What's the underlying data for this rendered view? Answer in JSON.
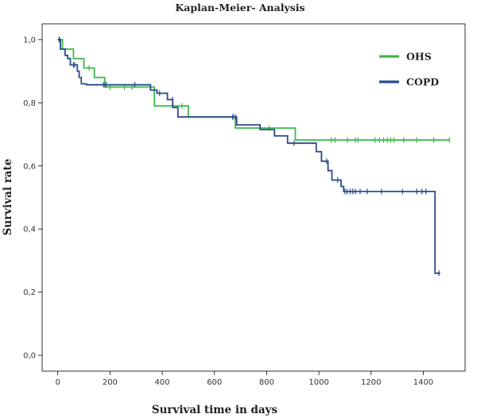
{
  "chart_data": {
    "type": "line",
    "title": "Kaplan-Meier- Analysis",
    "xlabel": "Survival time in days",
    "ylabel": "Survival rate",
    "xlim": [
      -60,
      1560
    ],
    "ylim": [
      -0.05,
      1.05
    ],
    "x_ticks": [
      0,
      200,
      400,
      600,
      800,
      1000,
      1200,
      1400
    ],
    "x_tick_labels": [
      "0",
      "200",
      "400",
      "600",
      "800",
      "1000",
      "1200",
      "1400"
    ],
    "y_ticks": [
      0.0,
      0.2,
      0.4,
      0.6,
      0.8,
      1.0
    ],
    "y_tick_labels": [
      "0,0",
      "0,2",
      "0,4",
      "0,6",
      "0,8",
      "1,0"
    ],
    "grid": false,
    "legend_position": "top-right",
    "series": [
      {
        "name": "OHS",
        "color": "#3cb84a",
        "steps": [
          [
            0,
            1.0
          ],
          [
            18,
            0.97
          ],
          [
            60,
            0.94
          ],
          [
            100,
            0.91
          ],
          [
            140,
            0.88
          ],
          [
            180,
            0.85
          ],
          [
            370,
            0.79
          ],
          [
            460,
            0.79
          ],
          [
            500,
            0.755
          ],
          [
            680,
            0.72
          ],
          [
            910,
            0.682
          ],
          [
            1500,
            0.682
          ]
        ],
        "censored": [
          [
            8,
            1.0
          ],
          [
            120,
            0.91
          ],
          [
            200,
            0.85
          ],
          [
            255,
            0.85
          ],
          [
            285,
            0.85
          ],
          [
            475,
            0.79
          ],
          [
            672,
            0.755
          ],
          [
            810,
            0.72
          ],
          [
            1048,
            0.682
          ],
          [
            1062,
            0.682
          ],
          [
            1110,
            0.682
          ],
          [
            1140,
            0.682
          ],
          [
            1150,
            0.682
          ],
          [
            1215,
            0.682
          ],
          [
            1232,
            0.682
          ],
          [
            1248,
            0.682
          ],
          [
            1262,
            0.682
          ],
          [
            1275,
            0.682
          ],
          [
            1288,
            0.682
          ],
          [
            1325,
            0.682
          ],
          [
            1375,
            0.682
          ],
          [
            1440,
            0.682
          ],
          [
            1500,
            0.682
          ]
        ]
      },
      {
        "name": "COPD",
        "color": "#2b4a8c",
        "steps": [
          [
            0,
            1.0
          ],
          [
            10,
            0.97
          ],
          [
            28,
            0.95
          ],
          [
            38,
            0.94
          ],
          [
            48,
            0.92
          ],
          [
            75,
            0.9
          ],
          [
            82,
            0.88
          ],
          [
            90,
            0.86
          ],
          [
            110,
            0.857
          ],
          [
            355,
            0.84
          ],
          [
            380,
            0.83
          ],
          [
            420,
            0.81
          ],
          [
            440,
            0.785
          ],
          [
            460,
            0.755
          ],
          [
            685,
            0.73
          ],
          [
            775,
            0.715
          ],
          [
            830,
            0.695
          ],
          [
            880,
            0.672
          ],
          [
            990,
            0.645
          ],
          [
            1010,
            0.615
          ],
          [
            1035,
            0.585
          ],
          [
            1050,
            0.555
          ],
          [
            1085,
            0.535
          ],
          [
            1095,
            0.519
          ],
          [
            1445,
            0.26
          ],
          [
            1465,
            0.26
          ]
        ],
        "censored": [
          [
            5,
            1.0
          ],
          [
            60,
            0.92
          ],
          [
            65,
            0.92
          ],
          [
            175,
            0.857
          ],
          [
            185,
            0.857
          ],
          [
            295,
            0.857
          ],
          [
            390,
            0.83
          ],
          [
            440,
            0.81
          ],
          [
            670,
            0.755
          ],
          [
            680,
            0.755
          ],
          [
            905,
            0.672
          ],
          [
            1030,
            0.615
          ],
          [
            1072,
            0.555
          ],
          [
            1100,
            0.519
          ],
          [
            1108,
            0.519
          ],
          [
            1120,
            0.519
          ],
          [
            1130,
            0.519
          ],
          [
            1140,
            0.519
          ],
          [
            1158,
            0.519
          ],
          [
            1185,
            0.519
          ],
          [
            1240,
            0.519
          ],
          [
            1320,
            0.519
          ],
          [
            1375,
            0.519
          ],
          [
            1395,
            0.519
          ],
          [
            1410,
            0.519
          ],
          [
            1460,
            0.26
          ]
        ]
      }
    ]
  }
}
